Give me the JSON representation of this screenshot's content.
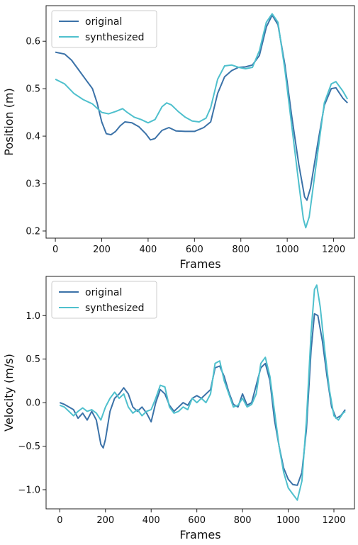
{
  "chart_data": [
    {
      "type": "line",
      "title": "",
      "xlabel": "Frames",
      "ylabel": "Position (m)",
      "xlim": [
        -40,
        1290
      ],
      "ylim": [
        0.185,
        0.675
      ],
      "xticks": [
        0,
        200,
        400,
        600,
        800,
        1000,
        1200
      ],
      "yticks": [
        0.2,
        0.3,
        0.4,
        0.5,
        0.6
      ],
      "ytick_labels": [
        "0.2",
        "0.3",
        "0.4",
        "0.5",
        "0.6"
      ],
      "grid": false,
      "legend_position": "top-left",
      "series": [
        {
          "name": "original",
          "color": "#3b72a8",
          "points": [
            [
              0,
              0.577
            ],
            [
              40,
              0.573
            ],
            [
              70,
              0.56
            ],
            [
              100,
              0.54
            ],
            [
              130,
              0.52
            ],
            [
              160,
              0.5
            ],
            [
              180,
              0.47
            ],
            [
              200,
              0.43
            ],
            [
              220,
              0.405
            ],
            [
              240,
              0.403
            ],
            [
              260,
              0.41
            ],
            [
              280,
              0.422
            ],
            [
              300,
              0.43
            ],
            [
              330,
              0.428
            ],
            [
              360,
              0.42
            ],
            [
              390,
              0.405
            ],
            [
              410,
              0.392
            ],
            [
              430,
              0.395
            ],
            [
              460,
              0.412
            ],
            [
              490,
              0.418
            ],
            [
              520,
              0.411
            ],
            [
              560,
              0.41
            ],
            [
              600,
              0.41
            ],
            [
              640,
              0.418
            ],
            [
              670,
              0.43
            ],
            [
              700,
              0.49
            ],
            [
              730,
              0.525
            ],
            [
              760,
              0.538
            ],
            [
              790,
              0.545
            ],
            [
              820,
              0.546
            ],
            [
              850,
              0.55
            ],
            [
              880,
              0.57
            ],
            [
              910,
              0.63
            ],
            [
              935,
              0.655
            ],
            [
              960,
              0.635
            ],
            [
              990,
              0.55
            ],
            [
              1020,
              0.44
            ],
            [
              1050,
              0.34
            ],
            [
              1075,
              0.272
            ],
            [
              1085,
              0.265
            ],
            [
              1100,
              0.29
            ],
            [
              1130,
              0.38
            ],
            [
              1160,
              0.465
            ],
            [
              1190,
              0.5
            ],
            [
              1210,
              0.502
            ],
            [
              1240,
              0.48
            ],
            [
              1260,
              0.47
            ]
          ]
        },
        {
          "name": "synthesized",
          "color": "#4fc0cd",
          "points": [
            [
              0,
              0.52
            ],
            [
              40,
              0.51
            ],
            [
              80,
              0.49
            ],
            [
              120,
              0.477
            ],
            [
              160,
              0.468
            ],
            [
              200,
              0.45
            ],
            [
              230,
              0.447
            ],
            [
              260,
              0.452
            ],
            [
              290,
              0.458
            ],
            [
              310,
              0.45
            ],
            [
              340,
              0.44
            ],
            [
              370,
              0.435
            ],
            [
              400,
              0.428
            ],
            [
              430,
              0.435
            ],
            [
              460,
              0.462
            ],
            [
              480,
              0.47
            ],
            [
              500,
              0.466
            ],
            [
              530,
              0.452
            ],
            [
              560,
              0.44
            ],
            [
              590,
              0.432
            ],
            [
              620,
              0.43
            ],
            [
              650,
              0.438
            ],
            [
              670,
              0.46
            ],
            [
              700,
              0.52
            ],
            [
              730,
              0.548
            ],
            [
              760,
              0.55
            ],
            [
              790,
              0.545
            ],
            [
              820,
              0.542
            ],
            [
              850,
              0.545
            ],
            [
              880,
              0.58
            ],
            [
              910,
              0.64
            ],
            [
              935,
              0.658
            ],
            [
              960,
              0.64
            ],
            [
              990,
              0.54
            ],
            [
              1020,
              0.42
            ],
            [
              1050,
              0.3
            ],
            [
              1070,
              0.225
            ],
            [
              1080,
              0.207
            ],
            [
              1095,
              0.23
            ],
            [
              1130,
              0.36
            ],
            [
              1160,
              0.47
            ],
            [
              1190,
              0.51
            ],
            [
              1210,
              0.515
            ],
            [
              1240,
              0.495
            ],
            [
              1260,
              0.478
            ]
          ]
        }
      ]
    },
    {
      "type": "line",
      "title": "",
      "xlabel": "Frames",
      "ylabel": "Velocity (m/s)",
      "xlim": [
        -60,
        1290
      ],
      "ylim": [
        -1.22,
        1.45
      ],
      "xticks": [
        0,
        200,
        400,
        600,
        800,
        1000,
        1200
      ],
      "yticks": [
        -1.0,
        -0.5,
        0.0,
        0.5,
        1.0
      ],
      "ytick_labels": [
        "−1.0",
        "−0.5",
        "0.0",
        "0.5",
        "1.0"
      ],
      "grid": false,
      "legend_position": "top-left",
      "series": [
        {
          "name": "original",
          "color": "#3b72a8",
          "points": [
            [
              0,
              0.0
            ],
            [
              20,
              -0.02
            ],
            [
              40,
              -0.05
            ],
            [
              60,
              -0.08
            ],
            [
              80,
              -0.18
            ],
            [
              100,
              -0.12
            ],
            [
              120,
              -0.2
            ],
            [
              140,
              -0.1
            ],
            [
              160,
              -0.2
            ],
            [
              180,
              -0.48
            ],
            [
              190,
              -0.52
            ],
            [
              200,
              -0.42
            ],
            [
              220,
              -0.1
            ],
            [
              240,
              0.05
            ],
            [
              260,
              0.1
            ],
            [
              280,
              0.17
            ],
            [
              300,
              0.1
            ],
            [
              320,
              -0.05
            ],
            [
              340,
              -0.1
            ],
            [
              360,
              -0.05
            ],
            [
              380,
              -0.12
            ],
            [
              400,
              -0.22
            ],
            [
              420,
              0.0
            ],
            [
              440,
              0.15
            ],
            [
              460,
              0.1
            ],
            [
              480,
              -0.03
            ],
            [
              500,
              -0.1
            ],
            [
              520,
              -0.05
            ],
            [
              540,
              0.0
            ],
            [
              560,
              -0.03
            ],
            [
              580,
              0.05
            ],
            [
              600,
              0.08
            ],
            [
              620,
              0.05
            ],
            [
              640,
              0.1
            ],
            [
              660,
              0.15
            ],
            [
              680,
              0.4
            ],
            [
              700,
              0.42
            ],
            [
              720,
              0.3
            ],
            [
              740,
              0.12
            ],
            [
              760,
              -0.02
            ],
            [
              780,
              -0.05
            ],
            [
              800,
              0.1
            ],
            [
              820,
              -0.03
            ],
            [
              840,
              0.0
            ],
            [
              860,
              0.2
            ],
            [
              880,
              0.4
            ],
            [
              900,
              0.45
            ],
            [
              920,
              0.25
            ],
            [
              940,
              -0.2
            ],
            [
              960,
              -0.5
            ],
            [
              980,
              -0.75
            ],
            [
              1000,
              -0.88
            ],
            [
              1020,
              -0.94
            ],
            [
              1040,
              -0.95
            ],
            [
              1060,
              -0.8
            ],
            [
              1080,
              -0.3
            ],
            [
              1100,
              0.6
            ],
            [
              1115,
              1.02
            ],
            [
              1130,
              1.0
            ],
            [
              1150,
              0.7
            ],
            [
              1170,
              0.3
            ],
            [
              1190,
              -0.05
            ],
            [
              1210,
              -0.18
            ],
            [
              1230,
              -0.15
            ],
            [
              1250,
              -0.08
            ]
          ]
        },
        {
          "name": "synthesized",
          "color": "#4fc0cd",
          "points": [
            [
              0,
              -0.03
            ],
            [
              20,
              -0.05
            ],
            [
              40,
              -0.1
            ],
            [
              60,
              -0.15
            ],
            [
              80,
              -0.1
            ],
            [
              100,
              -0.06
            ],
            [
              120,
              -0.1
            ],
            [
              140,
              -0.08
            ],
            [
              160,
              -0.12
            ],
            [
              180,
              -0.2
            ],
            [
              200,
              -0.05
            ],
            [
              220,
              0.05
            ],
            [
              240,
              0.12
            ],
            [
              260,
              0.05
            ],
            [
              280,
              0.1
            ],
            [
              300,
              -0.05
            ],
            [
              320,
              -0.12
            ],
            [
              340,
              -0.08
            ],
            [
              360,
              -0.15
            ],
            [
              380,
              -0.1
            ],
            [
              400,
              -0.08
            ],
            [
              420,
              0.05
            ],
            [
              440,
              0.2
            ],
            [
              460,
              0.18
            ],
            [
              480,
              -0.05
            ],
            [
              500,
              -0.12
            ],
            [
              520,
              -0.1
            ],
            [
              540,
              -0.05
            ],
            [
              560,
              -0.08
            ],
            [
              580,
              0.05
            ],
            [
              600,
              0.0
            ],
            [
              620,
              0.05
            ],
            [
              640,
              0.0
            ],
            [
              660,
              0.1
            ],
            [
              680,
              0.45
            ],
            [
              700,
              0.48
            ],
            [
              720,
              0.25
            ],
            [
              740,
              0.1
            ],
            [
              760,
              -0.05
            ],
            [
              780,
              -0.03
            ],
            [
              800,
              0.05
            ],
            [
              820,
              -0.05
            ],
            [
              840,
              -0.02
            ],
            [
              860,
              0.1
            ],
            [
              880,
              0.45
            ],
            [
              900,
              0.52
            ],
            [
              920,
              0.3
            ],
            [
              940,
              -0.1
            ],
            [
              960,
              -0.5
            ],
            [
              980,
              -0.8
            ],
            [
              1000,
              -0.98
            ],
            [
              1020,
              -1.05
            ],
            [
              1040,
              -1.12
            ],
            [
              1060,
              -0.9
            ],
            [
              1080,
              -0.2
            ],
            [
              1100,
              0.8
            ],
            [
              1115,
              1.3
            ],
            [
              1125,
              1.35
            ],
            [
              1140,
              1.1
            ],
            [
              1160,
              0.6
            ],
            [
              1180,
              0.15
            ],
            [
              1200,
              -0.15
            ],
            [
              1220,
              -0.2
            ],
            [
              1240,
              -0.12
            ],
            [
              1250,
              -0.1
            ]
          ]
        }
      ]
    }
  ]
}
